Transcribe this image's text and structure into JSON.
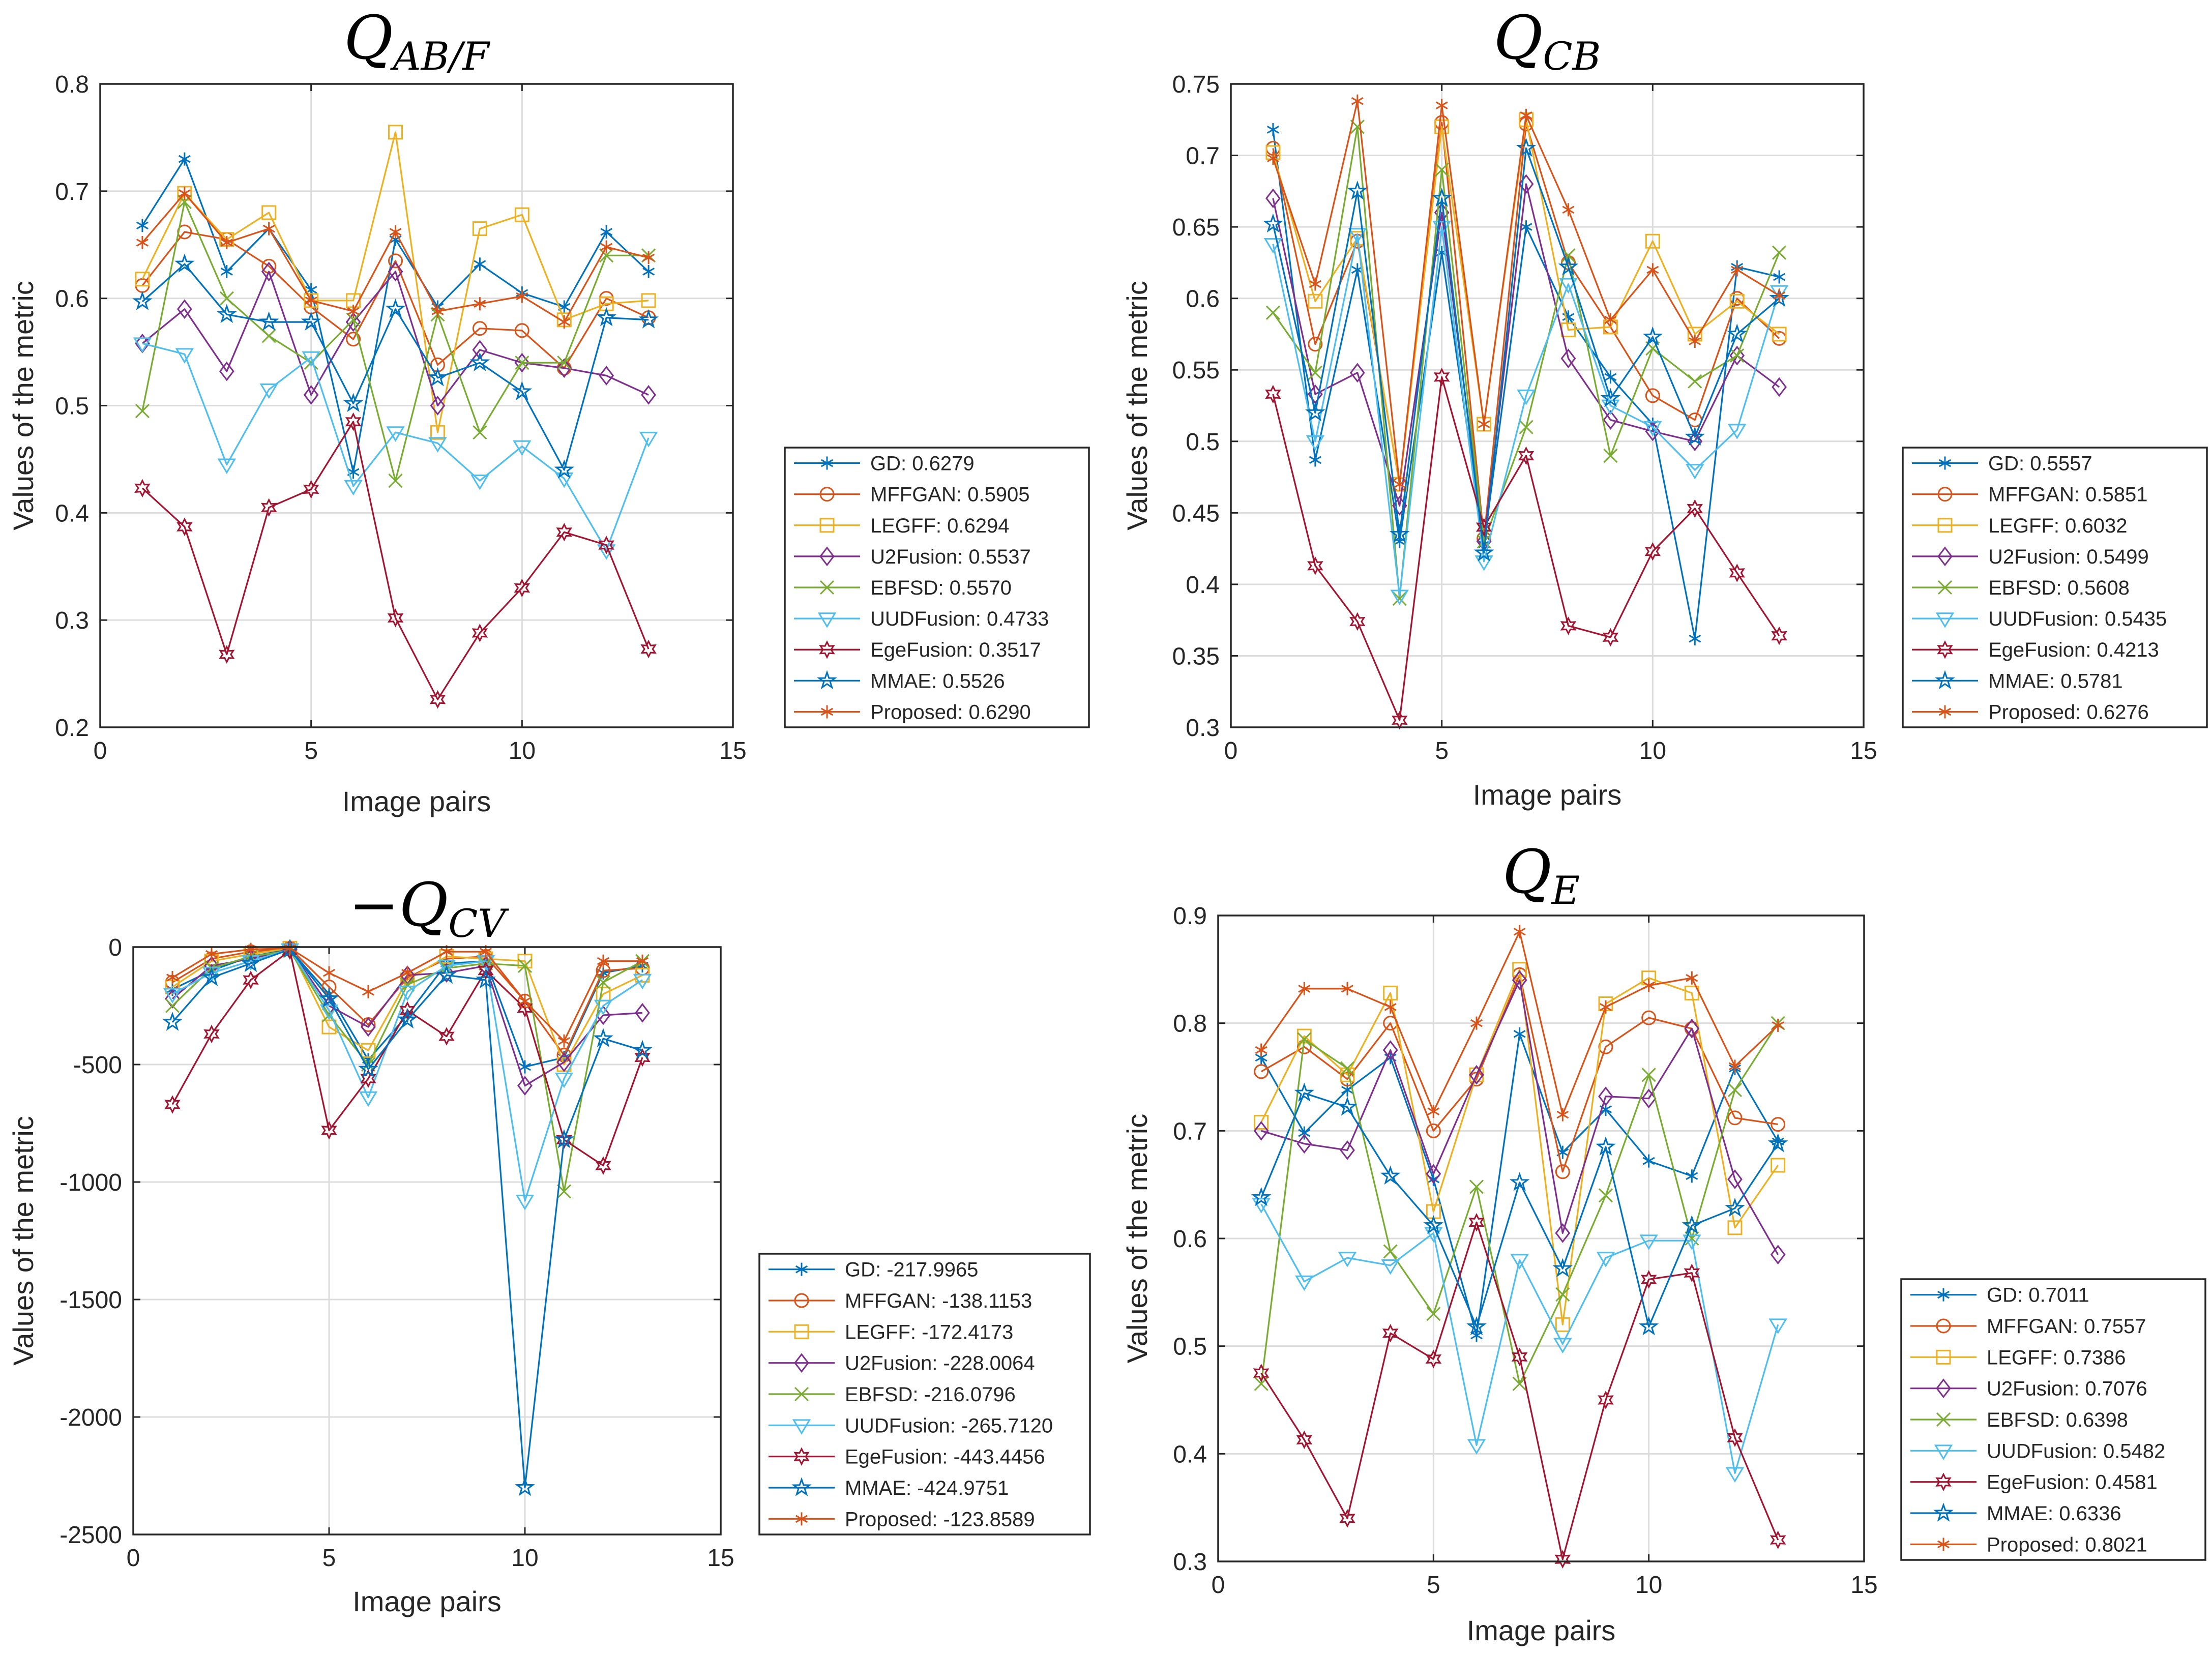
{
  "colors": {
    "GD": "#0072BD",
    "MFFGAN": "#D95319",
    "LEGFF": "#EDB120",
    "U2Fusion": "#7E2F8E",
    "EBFSD": "#77AC30",
    "UUDFusion": "#4DBEEE",
    "EgeFusion": "#A2142F",
    "MMAE": "#0072BD",
    "Proposed": "#D95319"
  },
  "chart_data": [
    {
      "type": "line",
      "title_main": "Q",
      "title_sub": "AB/F",
      "title_prefix": "",
      "xlabel": "Image pairs",
      "ylabel": "Values of the metric",
      "xlim": [
        0,
        15
      ],
      "ylim": [
        0.2,
        0.8
      ],
      "xticks": [
        0,
        5,
        10,
        15
      ],
      "xtick_labels": [
        "0",
        "5",
        "10",
        "15"
      ],
      "yticks": [
        0.2,
        0.3,
        0.4,
        0.5,
        0.6,
        0.7,
        0.8
      ],
      "ytick_labels": [
        "0.2",
        "0.3",
        "0.4",
        "0.5",
        "0.6",
        "0.7",
        "0.8"
      ],
      "grid": true,
      "legend_position": "right",
      "x": [
        1,
        2,
        3,
        4,
        5,
        6,
        7,
        8,
        9,
        10,
        11,
        12,
        13
      ],
      "series": [
        {
          "name": "GD",
          "label": "GD: 0.6279",
          "marker": "asterisk",
          "values": [
            0.668,
            0.73,
            0.625,
            0.665,
            0.608,
            0.438,
            0.655,
            0.592,
            0.632,
            0.605,
            0.592,
            0.662,
            0.625
          ]
        },
        {
          "name": "MFFGAN",
          "label": "MFFGAN: 0.5905",
          "marker": "circle",
          "values": [
            0.612,
            0.662,
            0.655,
            0.63,
            0.592,
            0.562,
            0.635,
            0.538,
            0.572,
            0.57,
            0.535,
            0.6,
            0.582
          ]
        },
        {
          "name": "LEGFF",
          "label": "LEGFF: 0.6294",
          "marker": "square",
          "values": [
            0.618,
            0.698,
            0.655,
            0.68,
            0.598,
            0.598,
            0.755,
            0.475,
            0.665,
            0.678,
            0.58,
            0.595,
            0.598
          ]
        },
        {
          "name": "U2Fusion",
          "label": "U2Fusion: 0.5537",
          "marker": "diamond",
          "values": [
            0.558,
            0.59,
            0.532,
            0.625,
            0.51,
            0.578,
            0.625,
            0.5,
            0.552,
            0.54,
            0.535,
            0.528,
            0.51
          ]
        },
        {
          "name": "EBFSD",
          "label": "EBFSD: 0.5570",
          "marker": "x",
          "values": [
            0.495,
            0.69,
            0.6,
            0.565,
            0.54,
            0.58,
            0.43,
            0.585,
            0.475,
            0.54,
            0.54,
            0.64,
            0.64
          ]
        },
        {
          "name": "UUDFusion",
          "label": "UUDFusion: 0.4733",
          "marker": "triangle-down",
          "values": [
            0.558,
            0.548,
            0.445,
            0.515,
            0.545,
            0.425,
            0.475,
            0.465,
            0.43,
            0.462,
            0.432,
            0.365,
            0.47
          ]
        },
        {
          "name": "EgeFusion",
          "label": "EgeFusion: 0.3517",
          "marker": "hexagram",
          "values": [
            0.423,
            0.387,
            0.268,
            0.405,
            0.422,
            0.485,
            0.302,
            0.226,
            0.288,
            0.33,
            0.382,
            0.37,
            0.273
          ]
        },
        {
          "name": "MMAE",
          "label": "MMAE: 0.5526",
          "marker": "pentagram",
          "values": [
            0.597,
            0.632,
            0.585,
            0.578,
            0.578,
            0.502,
            0.59,
            0.526,
            0.54,
            0.513,
            0.44,
            0.582,
            0.58
          ]
        },
        {
          "name": "Proposed",
          "label": "Proposed: 0.6290",
          "marker": "asterisk",
          "values": [
            0.652,
            0.698,
            0.652,
            0.665,
            0.598,
            0.588,
            0.662,
            0.588,
            0.595,
            0.602,
            0.578,
            0.648,
            0.638
          ]
        }
      ]
    },
    {
      "type": "line",
      "title_main": "Q",
      "title_sub": "CB",
      "title_prefix": "",
      "xlabel": "Image pairs",
      "ylabel": "Values of the metric",
      "xlim": [
        0,
        15
      ],
      "ylim": [
        0.3,
        0.75
      ],
      "xticks": [
        0,
        5,
        10,
        15
      ],
      "xtick_labels": [
        "0",
        "5",
        "10",
        "15"
      ],
      "yticks": [
        0.3,
        0.35,
        0.4,
        0.45,
        0.5,
        0.55,
        0.6,
        0.65,
        0.7,
        0.75
      ],
      "ytick_labels": [
        "0.3",
        "0.35",
        "0.4",
        "0.45",
        "0.5",
        "0.55",
        "0.6",
        "0.65",
        "0.7",
        "0.75"
      ],
      "grid": true,
      "legend_position": "right",
      "x": [
        1,
        2,
        3,
        4,
        5,
        6,
        7,
        8,
        9,
        10,
        11,
        12,
        13
      ],
      "series": [
        {
          "name": "GD",
          "label": "GD: 0.5557",
          "marker": "asterisk",
          "values": [
            0.718,
            0.487,
            0.62,
            0.43,
            0.632,
            0.428,
            0.65,
            0.587,
            0.545,
            0.512,
            0.362,
            0.622,
            0.615
          ]
        },
        {
          "name": "MFFGAN",
          "label": "MFFGAN: 0.5851",
          "marker": "circle",
          "values": [
            0.705,
            0.568,
            0.64,
            0.47,
            0.723,
            0.432,
            0.722,
            0.625,
            0.58,
            0.532,
            0.515,
            0.6,
            0.572
          ]
        },
        {
          "name": "LEGFF",
          "label": "LEGFF: 0.6032",
          "marker": "square",
          "values": [
            0.702,
            0.598,
            0.642,
            0.47,
            0.72,
            0.512,
            0.725,
            0.578,
            0.58,
            0.64,
            0.575,
            0.598,
            0.575
          ]
        },
        {
          "name": "U2Fusion",
          "label": "U2Fusion: 0.5499",
          "marker": "diamond",
          "values": [
            0.67,
            0.533,
            0.548,
            0.455,
            0.66,
            0.43,
            0.68,
            0.558,
            0.515,
            0.507,
            0.5,
            0.56,
            0.538
          ]
        },
        {
          "name": "EBFSD",
          "label": "EBFSD: 0.5608",
          "marker": "x",
          "values": [
            0.59,
            0.548,
            0.72,
            0.39,
            0.69,
            0.43,
            0.51,
            0.63,
            0.49,
            0.565,
            0.542,
            0.56,
            0.632
          ]
        },
        {
          "name": "UUDFusion",
          "label": "UUDFusion: 0.5435",
          "marker": "triangle-down",
          "values": [
            0.638,
            0.5,
            0.645,
            0.392,
            0.65,
            0.416,
            0.532,
            0.61,
            0.525,
            0.51,
            0.48,
            0.508,
            0.605
          ]
        },
        {
          "name": "EgeFusion",
          "label": "EgeFusion: 0.4213",
          "marker": "hexagram",
          "values": [
            0.533,
            0.413,
            0.374,
            0.305,
            0.545,
            0.44,
            0.49,
            0.371,
            0.363,
            0.423,
            0.453,
            0.408,
            0.364
          ]
        },
        {
          "name": "MMAE",
          "label": "MMAE: 0.5781",
          "marker": "pentagram",
          "values": [
            0.652,
            0.52,
            0.675,
            0.435,
            0.67,
            0.422,
            0.705,
            0.622,
            0.53,
            0.573,
            0.503,
            0.575,
            0.6
          ]
        },
        {
          "name": "Proposed",
          "label": "Proposed: 0.6276",
          "marker": "asterisk",
          "values": [
            0.698,
            0.61,
            0.738,
            0.47,
            0.735,
            0.512,
            0.728,
            0.662,
            0.585,
            0.62,
            0.57,
            0.62,
            0.602
          ]
        }
      ]
    },
    {
      "type": "line",
      "title_main": "Q",
      "title_sub": "CV",
      "title_prefix": "−",
      "xlabel": "Image pairs",
      "ylabel": "Values of the metric",
      "xlim": [
        0,
        15
      ],
      "ylim": [
        -2500,
        0
      ],
      "xticks": [
        0,
        5,
        10,
        15
      ],
      "xtick_labels": [
        "0",
        "5",
        "10",
        "15"
      ],
      "yticks": [
        -2500,
        -2000,
        -1500,
        -1000,
        -500,
        0
      ],
      "ytick_labels": [
        "-2500",
        "-2000",
        "-1500",
        "-1000",
        "-500",
        "0"
      ],
      "grid": true,
      "legend_position": "right",
      "x": [
        1,
        2,
        3,
        4,
        5,
        6,
        7,
        8,
        9,
        10,
        11,
        12,
        13
      ],
      "series": [
        {
          "name": "GD",
          "label": "GD: -217.9965",
          "marker": "asterisk",
          "values": [
            -180,
            -100,
            -40,
            -10,
            -200,
            -480,
            -290,
            -70,
            -60,
            -510,
            -470,
            -110,
            -80
          ]
        },
        {
          "name": "MFFGAN",
          "label": "MFFGAN: -138.1153",
          "marker": "circle",
          "values": [
            -150,
            -50,
            -20,
            -5,
            -170,
            -330,
            -130,
            -50,
            -40,
            -230,
            -460,
            -100,
            -90
          ]
        },
        {
          "name": "LEGFF",
          "label": "LEGFF: -172.4173",
          "marker": "square",
          "values": [
            -170,
            -60,
            -30,
            -5,
            -340,
            -440,
            -140,
            -40,
            -50,
            -60,
            -500,
            -200,
            -120
          ]
        },
        {
          "name": "U2Fusion",
          "label": "U2Fusion: -228.0064",
          "marker": "diamond",
          "values": [
            -220,
            -80,
            -50,
            -10,
            -250,
            -340,
            -120,
            -110,
            -80,
            -590,
            -490,
            -290,
            -280
          ]
        },
        {
          "name": "EBFSD",
          "label": "EBFSD: -216.0796",
          "marker": "x",
          "values": [
            -250,
            -90,
            -40,
            -15,
            -290,
            -500,
            -160,
            -90,
            -70,
            -80,
            -1040,
            -150,
            -60
          ]
        },
        {
          "name": "UUDFusion",
          "label": "UUDFusion: -265.7120",
          "marker": "triangle-down",
          "values": [
            -200,
            -110,
            -60,
            -10,
            -270,
            -640,
            -190,
            -80,
            -60,
            -1080,
            -560,
            -250,
            -140
          ]
        },
        {
          "name": "EgeFusion",
          "label": "EgeFusion: -443.4456",
          "marker": "hexagram",
          "values": [
            -670,
            -370,
            -140,
            -15,
            -780,
            -560,
            -270,
            -380,
            -100,
            -260,
            -820,
            -930,
            -470
          ]
        },
        {
          "name": "MMAE",
          "label": "MMAE: -424.9751",
          "marker": "pentagram",
          "values": [
            -320,
            -130,
            -70,
            -10,
            -220,
            -520,
            -310,
            -120,
            -140,
            -2300,
            -820,
            -390,
            -440
          ]
        },
        {
          "name": "Proposed",
          "label": "Proposed: -123.8589",
          "marker": "asterisk",
          "values": [
            -130,
            -30,
            -10,
            -5,
            -110,
            -190,
            -110,
            -20,
            -20,
            -230,
            -400,
            -60,
            -60
          ]
        }
      ]
    },
    {
      "type": "line",
      "title_main": "Q",
      "title_sub": "E",
      "title_prefix": "",
      "xlabel": "Image pairs",
      "ylabel": "Values of the metric",
      "xlim": [
        0,
        15
      ],
      "ylim": [
        0.3,
        0.9
      ],
      "xticks": [
        0,
        5,
        10,
        15
      ],
      "xtick_labels": [
        "0",
        "5",
        "10",
        "15"
      ],
      "yticks": [
        0.3,
        0.4,
        0.5,
        0.6,
        0.7,
        0.8,
        0.9
      ],
      "ytick_labels": [
        "0.3",
        "0.4",
        "0.5",
        "0.6",
        "0.7",
        "0.8",
        "0.9"
      ],
      "grid": true,
      "legend_position": "right",
      "x": [
        1,
        2,
        3,
        4,
        5,
        6,
        7,
        8,
        9,
        10,
        11,
        12,
        13
      ],
      "series": [
        {
          "name": "GD",
          "label": "GD: 0.7011",
          "marker": "asterisk",
          "values": [
            0.768,
            0.698,
            0.738,
            0.768,
            0.655,
            0.51,
            0.79,
            0.68,
            0.72,
            0.672,
            0.658,
            0.758,
            0.69
          ]
        },
        {
          "name": "MFFGAN",
          "label": "MFFGAN: 0.7557",
          "marker": "circle",
          "values": [
            0.755,
            0.778,
            0.748,
            0.8,
            0.7,
            0.748,
            0.845,
            0.662,
            0.778,
            0.805,
            0.795,
            0.712,
            0.706
          ]
        },
        {
          "name": "LEGFF",
          "label": "LEGFF: 0.7386",
          "marker": "square",
          "values": [
            0.708,
            0.788,
            0.752,
            0.828,
            0.625,
            0.752,
            0.85,
            0.52,
            0.818,
            0.842,
            0.828,
            0.61,
            0.668
          ]
        },
        {
          "name": "U2Fusion",
          "label": "U2Fusion: 0.7076",
          "marker": "diamond",
          "values": [
            0.7,
            0.688,
            0.682,
            0.775,
            0.66,
            0.752,
            0.84,
            0.605,
            0.732,
            0.73,
            0.795,
            0.655,
            0.585
          ]
        },
        {
          "name": "EBFSD",
          "label": "EBFSD: 0.6398",
          "marker": "x",
          "values": [
            0.465,
            0.785,
            0.758,
            0.588,
            0.53,
            0.648,
            0.465,
            0.548,
            0.64,
            0.752,
            0.6,
            0.738,
            0.8
          ]
        },
        {
          "name": "UUDFusion",
          "label": "UUDFusion: 0.5482",
          "marker": "triangle-down",
          "values": [
            0.632,
            0.56,
            0.582,
            0.575,
            0.605,
            0.408,
            0.58,
            0.502,
            0.582,
            0.598,
            0.598,
            0.382,
            0.52
          ]
        },
        {
          "name": "EgeFusion",
          "label": "EgeFusion: 0.4581",
          "marker": "hexagram",
          "values": [
            0.475,
            0.413,
            0.34,
            0.512,
            0.488,
            0.615,
            0.49,
            0.302,
            0.45,
            0.562,
            0.568,
            0.415,
            0.32
          ]
        },
        {
          "name": "MMAE",
          "label": "MMAE: 0.6336",
          "marker": "pentagram",
          "values": [
            0.638,
            0.735,
            0.722,
            0.658,
            0.612,
            0.518,
            0.652,
            0.572,
            0.685,
            0.518,
            0.612,
            0.628,
            0.688
          ]
        },
        {
          "name": "Proposed",
          "label": "Proposed: 0.8021",
          "marker": "asterisk",
          "values": [
            0.775,
            0.832,
            0.832,
            0.815,
            0.718,
            0.8,
            0.885,
            0.715,
            0.815,
            0.835,
            0.842,
            0.76,
            0.798
          ]
        }
      ]
    }
  ]
}
